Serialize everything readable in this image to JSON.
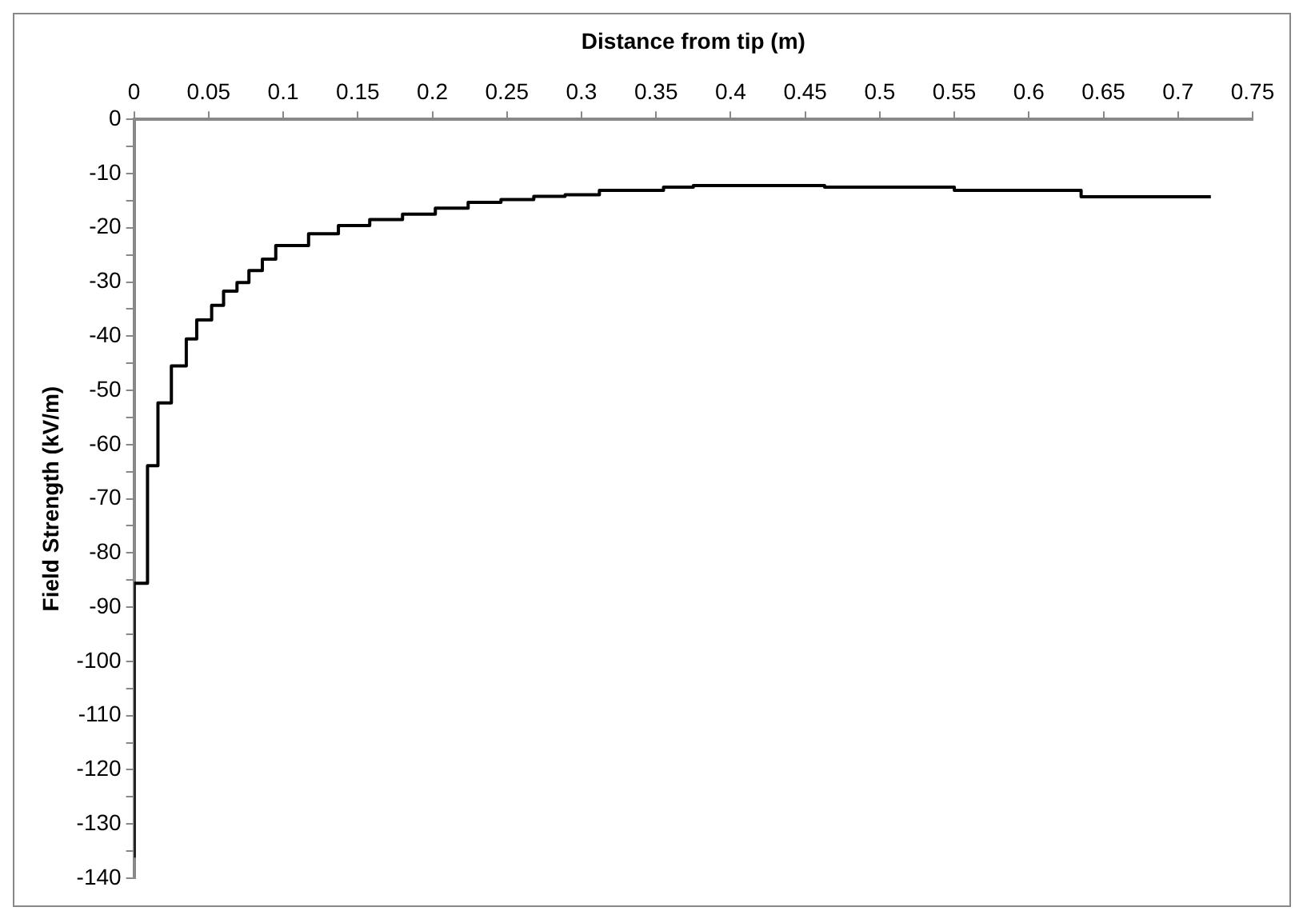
{
  "chart_data": {
    "type": "step",
    "xlabel": "Distance from tip (m)",
    "ylabel": "Field Strength (kV/m)",
    "x": [
      0,
      0.009,
      0.016,
      0.025,
      0.035,
      0.042,
      0.052,
      0.06,
      0.069,
      0.077,
      0.086,
      0.095,
      0.117,
      0.137,
      0.158,
      0.18,
      0.202,
      0.224,
      0.246,
      0.268,
      0.289,
      0.312,
      0.355,
      0.375,
      0.463,
      0.55,
      0.635,
      0.678,
      0.722
    ],
    "series": [
      {
        "color": "#000000",
        "values": [
          -136.2,
          -85.6,
          -63.9,
          -52.3,
          -45.5,
          -40.5,
          -37.0,
          -34.3,
          -31.7,
          -30.1,
          -27.9,
          -25.8,
          -23.3,
          -21.1,
          -19.6,
          -18.5,
          -17.5,
          -16.4,
          -15.3,
          -14.8,
          -14.2,
          -13.9,
          -13.1,
          -12.5,
          -12.2,
          -12.5,
          -13.1,
          -14.3,
          -14.3
        ]
      }
    ],
    "xlim": [
      0,
      0.75
    ],
    "xticks": [
      0,
      0.05,
      0.1,
      0.15,
      0.2,
      0.25,
      0.3,
      0.35,
      0.4,
      0.45,
      0.5,
      0.55,
      0.6,
      0.65,
      0.7,
      0.75
    ],
    "ylim": [
      -140,
      0
    ],
    "yticks": [
      0,
      {
        "value": -5,
        "label": null
      },
      -10,
      {
        "value": -15,
        "label": null
      },
      -20,
      {
        "value": -25,
        "label": null
      },
      -30,
      {
        "value": -35,
        "label": null
      },
      -40,
      {
        "value": -45,
        "label": null
      },
      -50,
      {
        "value": -55,
        "label": null
      },
      -60,
      {
        "value": -65,
        "label": null
      },
      -70,
      {
        "value": -75,
        "label": null
      },
      -80,
      {
        "value": -85,
        "label": null
      },
      -90,
      {
        "value": -95,
        "label": null
      },
      -100,
      {
        "value": -105,
        "label": null
      },
      -110,
      {
        "value": -115,
        "label": null
      },
      -120,
      {
        "value": -125,
        "label": null
      },
      -130,
      {
        "value": -135,
        "label": null
      },
      -140
    ],
    "grid": false,
    "legend": false,
    "marker": "none",
    "line_style": "solid"
  }
}
